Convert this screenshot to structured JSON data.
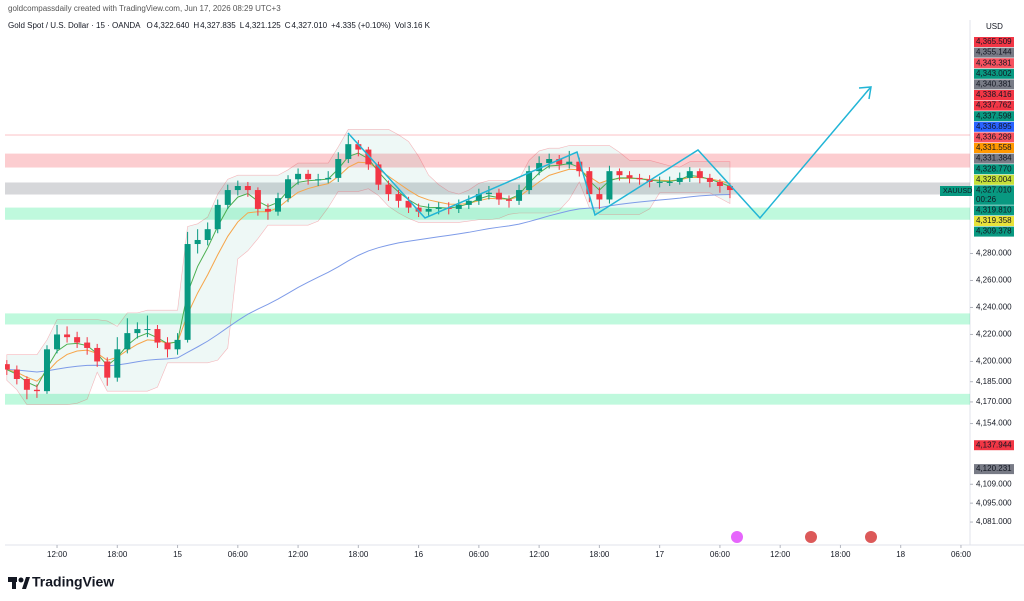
{
  "header": {
    "credit": "goldcompassdaily created with TradingView.com, Jun 17, 2026 08:29 UTC+3",
    "symbol": "Gold Spot / U.S. Dollar · 15 · OANDA",
    "ohlc": [
      {
        "key": "O",
        "value": "4,322.640"
      },
      {
        "key": "H",
        "value": "4,327.835"
      },
      {
        "key": "L",
        "value": "4,321.125"
      },
      {
        "key": "C",
        "value": "4,327.010"
      }
    ],
    "change": "+4.335 (+0.10%)",
    "volume_key": "Vol",
    "volume": "3.16 K"
  },
  "footer": {
    "logo": "TradingView"
  },
  "chart_data": {
    "type": "candlestick",
    "currency": "USD",
    "symbol_tag": "XAUUSD",
    "up_color": "#089981",
    "down_color": "#f23645",
    "grid": false,
    "ylim": [
      4064,
      4453
    ],
    "yticks": [
      {
        "value": 4280,
        "label": "4,280.000"
      },
      {
        "value": 4260,
        "label": "4,260.000"
      },
      {
        "value": 4240,
        "label": "4,240.000"
      },
      {
        "value": 4220,
        "label": "4,220.000"
      },
      {
        "value": 4200,
        "label": "4,200.000"
      },
      {
        "value": 4185,
        "label": "4,185.000"
      },
      {
        "value": 4170,
        "label": "4,170.000"
      },
      {
        "value": 4154,
        "label": "4,154.000"
      },
      {
        "value": 4109,
        "label": "4,109.000"
      },
      {
        "value": 4095,
        "label": "4,095.000"
      },
      {
        "value": 4081,
        "label": "4,081.000"
      }
    ],
    "xlim": [
      -0.18,
      95.9
    ],
    "xticks": [
      {
        "value": 5,
        "label": "12:00"
      },
      {
        "value": 11,
        "label": "18:00"
      },
      {
        "value": 17,
        "label": "15"
      },
      {
        "value": 23,
        "label": "06:00"
      },
      {
        "value": 29,
        "label": "12:00"
      },
      {
        "value": 35,
        "label": "18:00"
      },
      {
        "value": 41,
        "label": "16"
      },
      {
        "value": 47,
        "label": "06:00"
      },
      {
        "value": 53,
        "label": "12:00"
      },
      {
        "value": 59,
        "label": "18:00"
      },
      {
        "value": 65,
        "label": "17"
      },
      {
        "value": 71,
        "label": "06:00"
      },
      {
        "value": 77,
        "label": "12:00"
      },
      {
        "value": 83,
        "label": "18:00"
      },
      {
        "value": 89,
        "label": "18"
      },
      {
        "value": 95,
        "label": "06:00"
      }
    ],
    "zones": [
      {
        "from": 4343.7,
        "to": 4354,
        "color": "rgba(242,54,69,0.25)"
      },
      {
        "from": 4323.7,
        "to": 4332.6,
        "color": "rgba(120,123,134,0.3)"
      },
      {
        "from": 4305,
        "to": 4314,
        "color": "rgba(0,230,118,0.25)"
      },
      {
        "from": 4227.4,
        "to": 4235.6,
        "color": "rgba(0,230,118,0.25)"
      },
      {
        "from": 4168,
        "to": 4176,
        "color": "rgba(0,230,118,0.25)"
      }
    ],
    "price_tags": [
      {
        "label": "4,365.509",
        "color": "#f23645"
      },
      {
        "label": "4,355.144",
        "color": "#787b86"
      },
      {
        "label": "4,343.381",
        "color": "#f7525f"
      },
      {
        "label": "4,343.002",
        "color": "#089981"
      },
      {
        "label": "4,340.381",
        "color": "#787b86"
      },
      {
        "label": "4,338.416",
        "color": "#f23645"
      },
      {
        "label": "4,337.762",
        "color": "#f23645"
      },
      {
        "label": "4,337.598",
        "color": "#089981"
      },
      {
        "label": "4,336.895",
        "color": "#2962ff"
      },
      {
        "label": "4,336.289",
        "color": "#f7525f"
      },
      {
        "label": "4,331.558",
        "color": "#ff9800"
      },
      {
        "label": "4,331.384",
        "color": "#787b86"
      },
      {
        "label": "4,328.770",
        "color": "#089981"
      },
      {
        "label": "4,328.004",
        "color": "#c6e03a"
      },
      {
        "label": "4,327.010",
        "sub": "00:26",
        "color": "#089981"
      },
      {
        "label": "4,319.810",
        "color": "#089981"
      },
      {
        "label": "4,319.358",
        "color": "#e8e23a"
      },
      {
        "label": "4,309.378",
        "color": "#089981"
      }
    ],
    "level_tags": [
      {
        "value": 4137.944,
        "label": "4,137.944",
        "color": "#f23645"
      },
      {
        "value": 4120.231,
        "label": "4,120.231",
        "color": "#787b86"
      }
    ],
    "ohlc": [
      [
        4198,
        4201,
        4190,
        4194
      ],
      [
        4194,
        4197,
        4183,
        4187
      ],
      [
        4187,
        4189,
        4172,
        4179
      ],
      [
        4179,
        4183,
        4173,
        4178
      ],
      [
        4178,
        4212,
        4176,
        4209
      ],
      [
        4209,
        4227,
        4206,
        4220
      ],
      [
        4220,
        4226,
        4214,
        4218
      ],
      [
        4218,
        4222,
        4210,
        4214
      ],
      [
        4214,
        4218,
        4205,
        4210
      ],
      [
        4210,
        4213,
        4196,
        4200
      ],
      [
        4200,
        4203,
        4182,
        4188
      ],
      [
        4188,
        4218,
        4185,
        4209
      ],
      [
        4209,
        4232,
        4206,
        4221
      ],
      [
        4221,
        4229,
        4217,
        4224
      ],
      [
        4224,
        4234,
        4218,
        4224
      ],
      [
        4224,
        4227,
        4210,
        4214
      ],
      [
        4214,
        4218,
        4203,
        4209
      ],
      [
        4209,
        4221,
        4205,
        4216
      ],
      [
        4216,
        4296,
        4214,
        4287
      ],
      [
        4287,
        4298,
        4280,
        4290
      ],
      [
        4290,
        4303,
        4286,
        4298
      ],
      [
        4298,
        4320,
        4295,
        4316
      ],
      [
        4316,
        4331,
        4313,
        4327
      ],
      [
        4327,
        4334,
        4323,
        4330
      ],
      [
        4330,
        4333,
        4322,
        4327
      ],
      [
        4327,
        4329,
        4308,
        4313
      ],
      [
        4313,
        4317,
        4305,
        4311
      ],
      [
        4311,
        4325,
        4308,
        4321
      ],
      [
        4321,
        4338,
        4318,
        4335
      ],
      [
        4335,
        4343,
        4331,
        4339
      ],
      [
        4339,
        4342,
        4331,
        4335
      ],
      [
        4335,
        4339,
        4330,
        4335
      ],
      [
        4335,
        4341,
        4332,
        4336
      ],
      [
        4336,
        4355,
        4333,
        4350
      ],
      [
        4350,
        4368,
        4347,
        4361
      ],
      [
        4361,
        4364,
        4352,
        4357
      ],
      [
        4357,
        4359,
        4342,
        4346
      ],
      [
        4346,
        4348,
        4327,
        4331
      ],
      [
        4331,
        4334,
        4319,
        4324
      ],
      [
        4324,
        4327,
        4314,
        4319
      ],
      [
        4319,
        4322,
        4310,
        4314
      ],
      [
        4314,
        4317,
        4307,
        4311
      ],
      [
        4311,
        4317,
        4308,
        4313
      ],
      [
        4313,
        4318,
        4309,
        4314
      ],
      [
        4314,
        4318,
        4309,
        4313
      ],
      [
        4313,
        4320,
        4310,
        4316
      ],
      [
        4316,
        4323,
        4313,
        4319
      ],
      [
        4319,
        4328,
        4316,
        4324
      ],
      [
        4324,
        4330,
        4320,
        4325
      ],
      [
        4325,
        4328,
        4316,
        4320
      ],
      [
        4320,
        4323,
        4314,
        4319
      ],
      [
        4319,
        4331,
        4316,
        4327
      ],
      [
        4327,
        4345,
        4324,
        4341
      ],
      [
        4341,
        4352,
        4338,
        4347
      ],
      [
        4347,
        4354,
        4343,
        4350
      ],
      [
        4350,
        4353,
        4342,
        4346
      ],
      [
        4346,
        4356,
        4343,
        4348
      ],
      [
        4348,
        4351,
        4337,
        4341
      ],
      [
        4341,
        4344,
        4318,
        4324
      ],
      [
        4324,
        4329,
        4313,
        4320
      ],
      [
        4320,
        4345,
        4317,
        4341
      ],
      [
        4341,
        4343,
        4334,
        4338
      ],
      [
        4338,
        4341,
        4332,
        4336
      ],
      [
        4336,
        4339,
        4331,
        4335
      ],
      [
        4335,
        4338,
        4329,
        4333
      ],
      [
        4333,
        4337,
        4329,
        4333
      ],
      [
        4333,
        4337,
        4330,
        4333
      ],
      [
        4333,
        4340,
        4331,
        4336
      ],
      [
        4336,
        4344,
        4333,
        4341
      ],
      [
        4341,
        4343,
        4332,
        4336
      ],
      [
        4336,
        4339,
        4329,
        4333
      ],
      [
        4333,
        4335,
        4325,
        4330
      ],
      [
        4330,
        4332,
        4321,
        4327.01
      ]
    ]
  }
}
